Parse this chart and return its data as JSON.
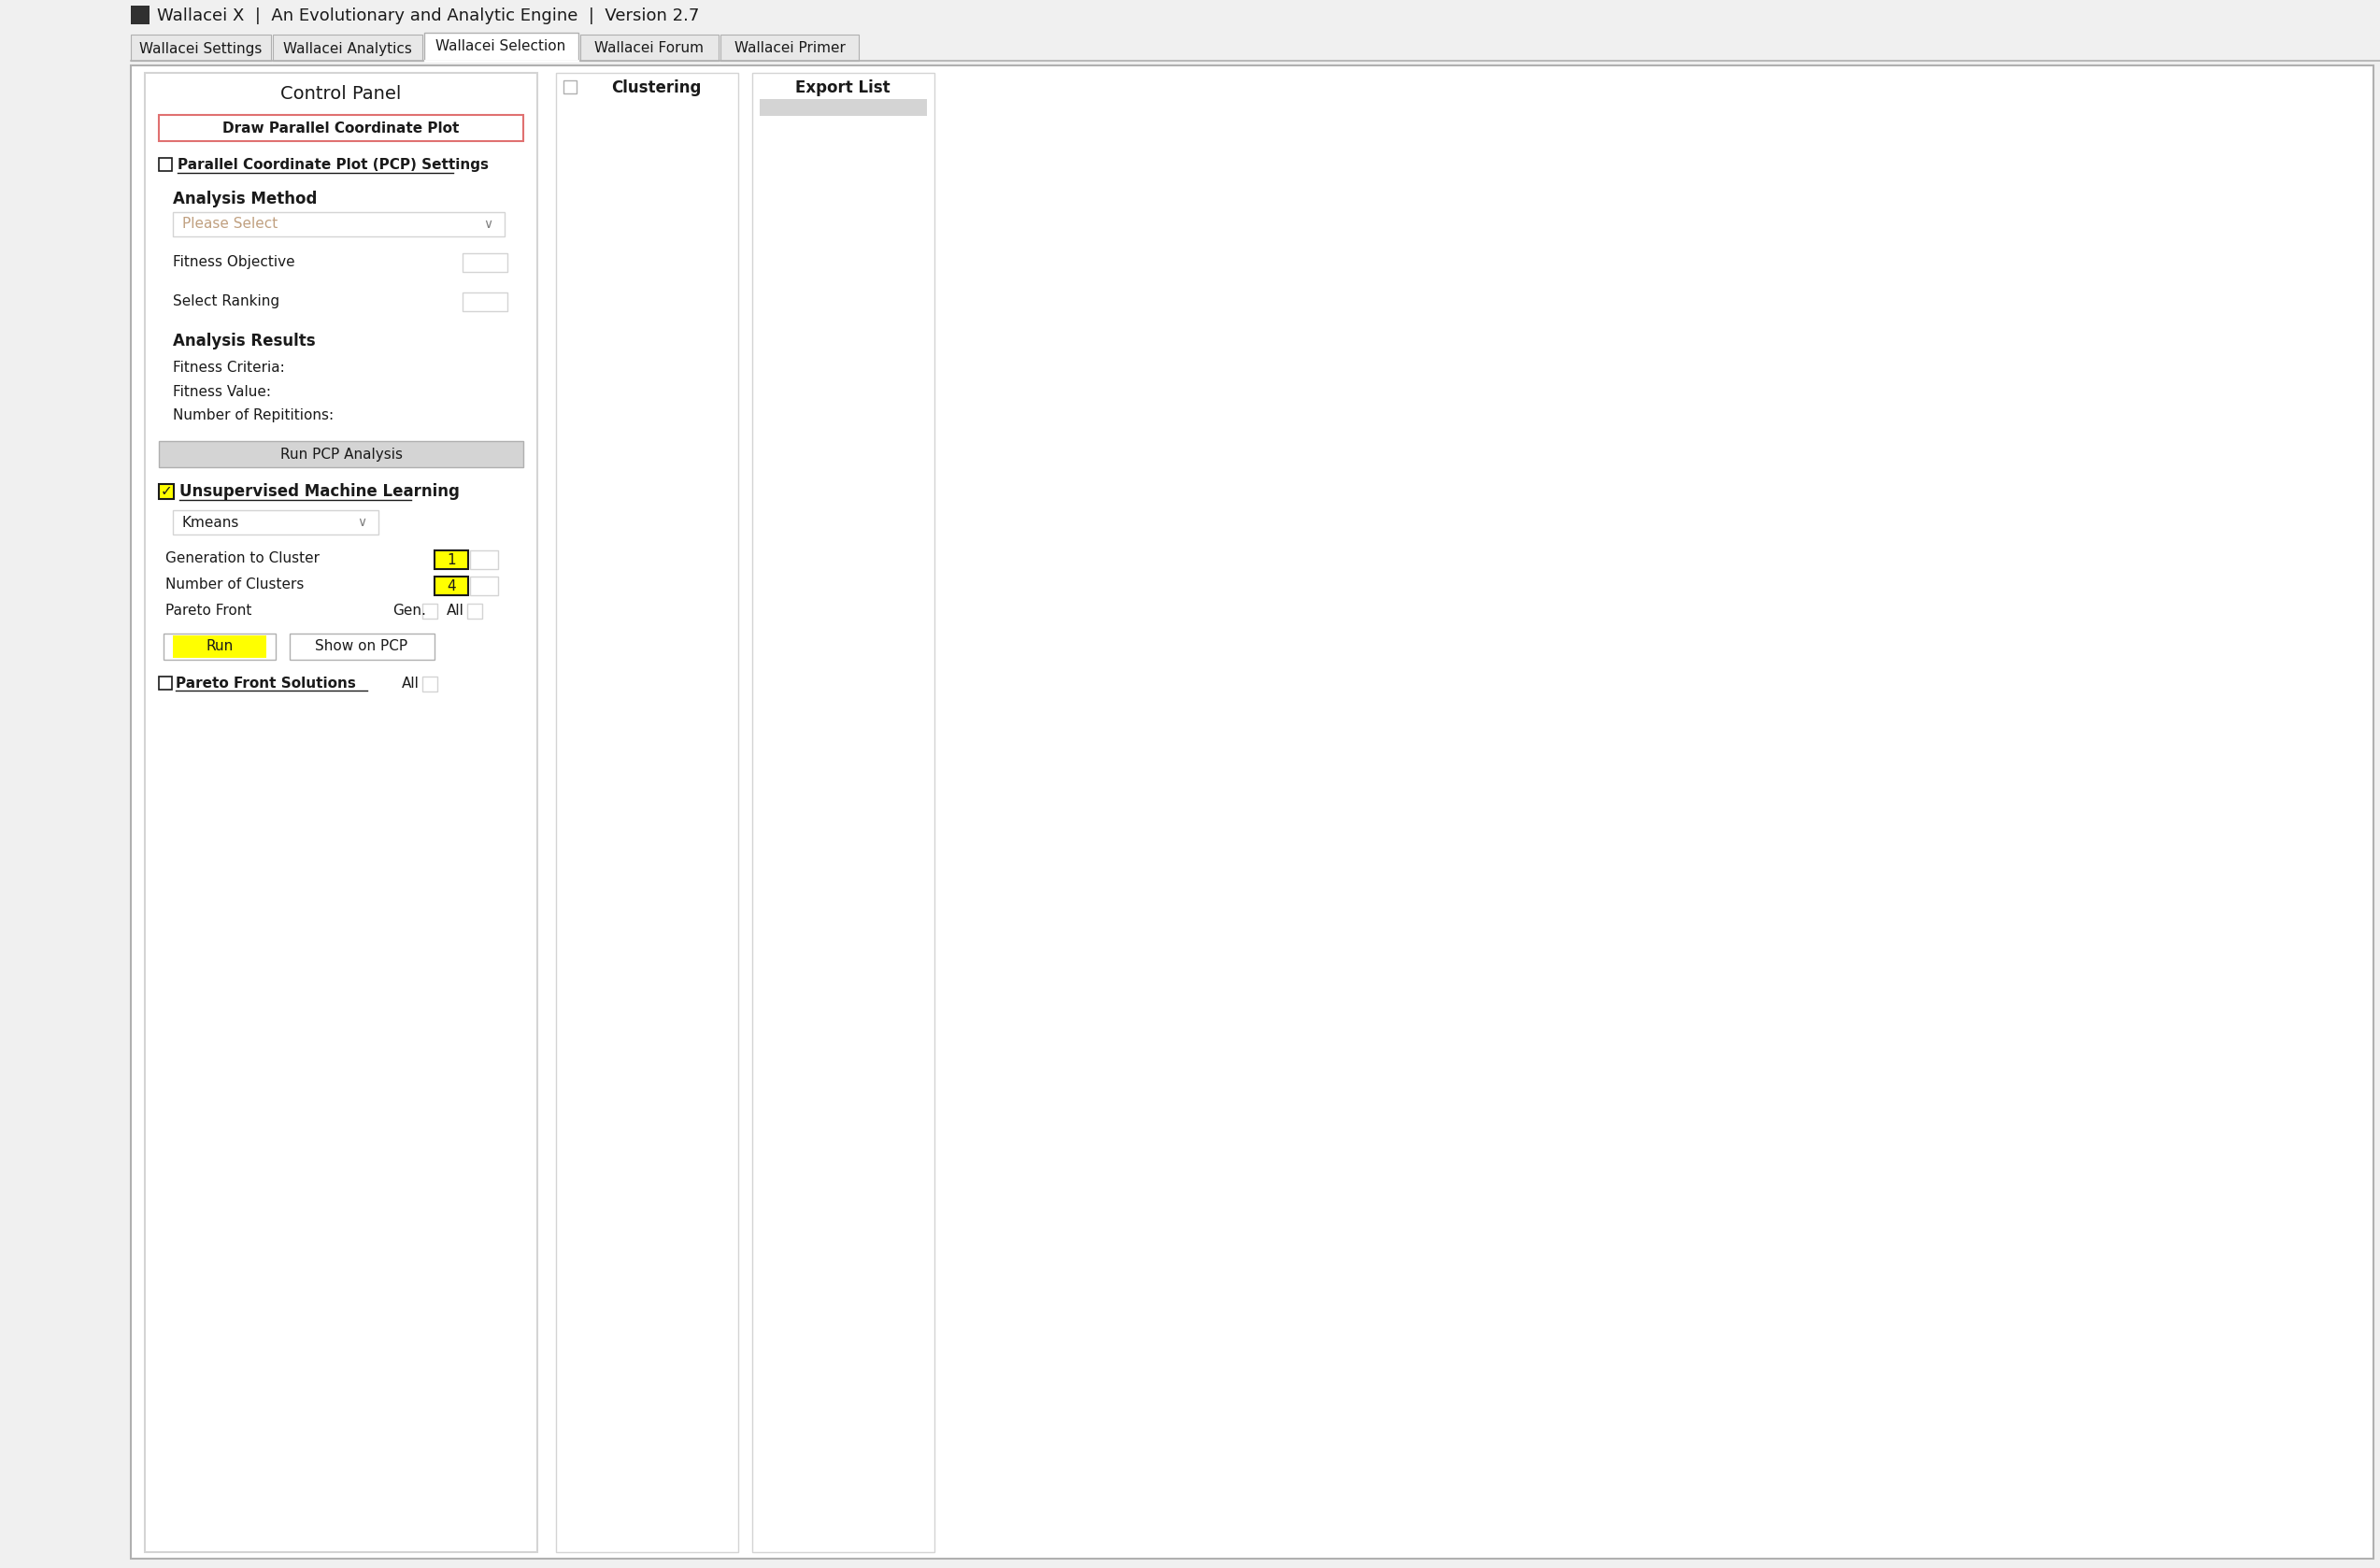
{
  "bg_color": "#f0f0f0",
  "white": "#ffffff",
  "light_gray": "#d4d4d4",
  "mid_gray": "#b0b0b0",
  "dark_gray": "#808080",
  "text_dark": "#1a1a1a",
  "pink_border": "#e07070",
  "yellow_highlight": "#ffff00",
  "tab_inactive_bg": "#e8e8e8",
  "title": "Wallacei X  |  An Evolutionary and Analytic Engine  |  Version 2.7",
  "tabs": [
    "Wallacei Settings",
    "Wallacei Analytics",
    "Wallacei Selection",
    "Wallacei Forum",
    "Wallacei Primer"
  ],
  "active_tab": 2,
  "section_headers": [
    "Clustering",
    "Export List"
  ],
  "control_panel_title": "Control Panel",
  "btn_draw_pcp": "Draw Parallel Coordinate Plot",
  "pcp_settings_label": "Parallel Coordinate Plot (PCP) Settings",
  "analysis_method_label": "Analysis Method",
  "dropdown_placeholder": "Please Select",
  "fitness_objective_label": "Fitness Objective",
  "select_ranking_label": "Select Ranking",
  "analysis_results_label": "Analysis Results",
  "fitness_criteria_label": "Fitness Criteria:",
  "fitness_value_label": "Fitness Value:",
  "num_repetitions_label": "Number of Repititions:",
  "run_pcp_btn": "Run PCP Analysis",
  "unsupervised_ml_label": "Unsupervised Machine Learning",
  "kmeans_option": "Kmeans",
  "gen_to_cluster_label": "Generation to Cluster",
  "num_clusters_label": "Number of Clusters",
  "pareto_front_label": "Pareto Front",
  "gen_label": "Gen.",
  "all_label": "All",
  "run_btn": "Run",
  "show_on_pcp_btn": "Show on PCP",
  "pareto_front_solutions_label": "Pareto Front Solutions",
  "all_label2": "All"
}
